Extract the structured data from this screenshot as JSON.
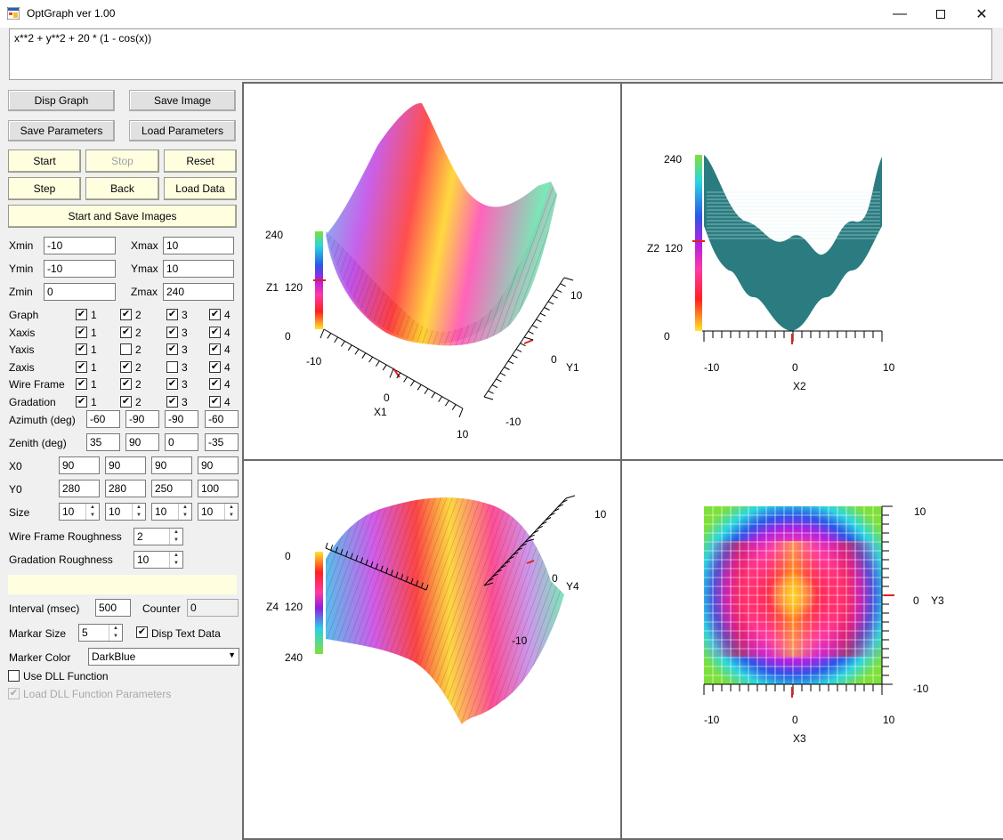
{
  "window": {
    "title": "OptGraph   ver 1.00",
    "minimize_icon": "minimize-icon",
    "maximize_icon": "maximize-icon",
    "close_icon": "close-icon"
  },
  "expression": "x**2 + y**2 + 20 * (1 - cos(x))",
  "buttons": {
    "disp_graph": "Disp Graph",
    "save_image": "Save Image",
    "save_parameters": "Save Parameters",
    "load_parameters": "Load Parameters",
    "start": "Start",
    "stop": "Stop",
    "reset": "Reset",
    "step": "Step",
    "back": "Back",
    "load_data": "Load Data",
    "start_save": "Start and Save Images"
  },
  "ranges": {
    "xmin_label": "Xmin",
    "xmin": "-10",
    "xmax_label": "Xmax",
    "xmax": "10",
    "ymin_label": "Ymin",
    "ymin": "-10",
    "ymax_label": "Ymax",
    "ymax": "10",
    "zmin_label": "Zmin",
    "zmin": "0",
    "zmax_label": "Zmax",
    "zmax": "240"
  },
  "checks": [
    {
      "label": "Graph",
      "values": [
        true,
        true,
        true,
        true
      ]
    },
    {
      "label": "Xaxis",
      "values": [
        true,
        true,
        true,
        true
      ]
    },
    {
      "label": "Yaxis",
      "values": [
        true,
        false,
        true,
        true
      ]
    },
    {
      "label": "Zaxis",
      "values": [
        true,
        true,
        false,
        true
      ]
    },
    {
      "label": "Wire Frame",
      "values": [
        true,
        true,
        true,
        true
      ]
    },
    {
      "label": "Gradation",
      "values": [
        true,
        true,
        true,
        true
      ]
    }
  ],
  "check_nums": [
    "1",
    "2",
    "3",
    "4"
  ],
  "check_mark": "✔",
  "views": {
    "azimuth_label": "Azimuth (deg)",
    "azimuth": [
      "-60",
      "-90",
      "-90",
      "-60"
    ],
    "zenith_label": "Zenith (deg)",
    "zenith": [
      "35",
      "90",
      "0",
      "-35"
    ],
    "x0_label": "X0",
    "x0": [
      "90",
      "90",
      "90",
      "90"
    ],
    "y0_label": "Y0",
    "y0": [
      "280",
      "280",
      "250",
      "100"
    ],
    "size_label": "Size",
    "size": [
      "10",
      "10",
      "10",
      "10"
    ]
  },
  "roughness": {
    "wire_label": "Wire Frame Roughness",
    "wire": "2",
    "grad_label": "Gradation Roughness",
    "grad": "10"
  },
  "status": "",
  "interval_label": "Interval (msec)",
  "interval": "500",
  "counter_label": "Counter",
  "counter": "0",
  "marker_size_label": "Markar Size",
  "marker_size": "5",
  "disp_text_label": "Disp Text Data",
  "disp_text": true,
  "marker_color_label": "Marker Color",
  "marker_color": "DarkBlue",
  "use_dll_label": "Use DLL Function",
  "use_dll": false,
  "load_dll_label": "Load DLL Function Parameters",
  "load_dll": true,
  "plots": {
    "p1": {
      "zlabel": "Z1",
      "xlabel": "X1",
      "ylabel": "Y1",
      "z_ticks": [
        "240",
        "120",
        "0"
      ],
      "x_ticks": [
        "-10",
        "0",
        "10"
      ],
      "y_ticks": [
        "10",
        "0",
        "-10"
      ]
    },
    "p2": {
      "zlabel": "Z2",
      "xlabel": "X2",
      "z_ticks": [
        "240",
        "120",
        "0"
      ],
      "x_ticks": [
        "-10",
        "0",
        "10"
      ]
    },
    "p3": {
      "xlabel": "X3",
      "ylabel": "Y3",
      "x_ticks": [
        "-10",
        "0",
        "10"
      ],
      "y_ticks": [
        "10",
        "0",
        "-10"
      ]
    },
    "p4": {
      "zlabel": "Z4",
      "ylabel": "Y4",
      "z_ticks": [
        "0",
        "120",
        "240"
      ],
      "y_ticks": [
        "10",
        "0",
        "-10"
      ]
    }
  },
  "colors": {
    "accent_button": "#ffffe0",
    "surface_wire": "#2a7c80",
    "marker": "#e02020"
  }
}
